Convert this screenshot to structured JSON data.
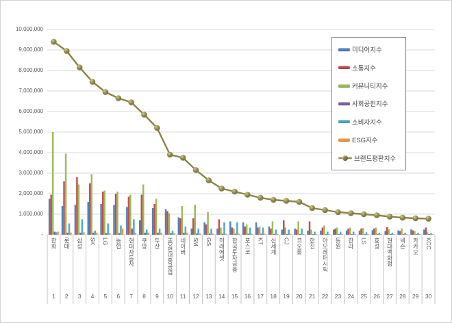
{
  "figure": {
    "background": "#ffffff",
    "border_color": "#d2d2d2"
  },
  "chart_data": {
    "type": "bar+line",
    "title": "",
    "grid": "horizontal-only",
    "legend_position": "upper-right-inside",
    "axis_text_color": "#595959",
    "gridline_color": "#d9d9d9",
    "separator_color": "#c3c3c3",
    "ylim": [
      0,
      10000000
    ],
    "y_tick_step": 1000000,
    "y_tick_labels": [
      "-",
      "1,000,000",
      "2,000,000",
      "3,000,000",
      "4,000,000",
      "5,000,000",
      "6,000,000",
      "7,000,000",
      "8,000,000",
      "9,000,000",
      "10,000,000"
    ],
    "categories": [
      "한화",
      "롯데",
      "삼성",
      "SK",
      "LG",
      "농협",
      "현대자동차",
      "쿠팡",
      "두산",
      "HD현대중공업",
      "네이버",
      "SM",
      "GS",
      "미래에셋",
      "한국투자금융",
      "포스코",
      "KT",
      "신세계",
      "CJ",
      "코오롱",
      "한진",
      "아모레퍼시픽",
      "동원",
      "한라",
      "LS",
      "효성",
      "현대백화점",
      "넥슨",
      "카카오",
      "KCC"
    ],
    "category_ranks": [
      "1",
      "2",
      "3",
      "4",
      "5",
      "6",
      "7",
      "8",
      "9",
      "10",
      "11",
      "12",
      "13",
      "14",
      "15",
      "16",
      "17",
      "18",
      "19",
      "20",
      "21",
      "22",
      "23",
      "24",
      "25",
      "26",
      "27",
      "28",
      "29",
      "30"
    ],
    "series": [
      {
        "name": "미디어지수",
        "type": "bar",
        "color": "#4F81BD",
        "values": [
          1750000,
          1400000,
          1450000,
          1600000,
          1500000,
          1450000,
          1350000,
          700000,
          1300000,
          1250000,
          850000,
          300000,
          600000,
          300000,
          650000,
          600000,
          600000,
          400000,
          250000,
          300000,
          200000,
          200000,
          250000,
          200000,
          200000,
          220000,
          180000,
          210000,
          260000,
          250000
        ]
      },
      {
        "name": "소통지수",
        "type": "bar",
        "color": "#C0504D",
        "values": [
          1950000,
          2600000,
          2800000,
          2500000,
          2100000,
          2000000,
          1850000,
          1950000,
          1500000,
          1150000,
          800000,
          800000,
          500000,
          750000,
          350000,
          400000,
          350000,
          300000,
          700000,
          250000,
          650000,
          350000,
          300000,
          300000,
          300000,
          300000,
          370000,
          180000,
          210000,
          350000
        ]
      },
      {
        "name": "커뮤니티지수",
        "type": "bar",
        "color": "#9BBB59",
        "values": [
          5000000,
          3950000,
          2450000,
          2950000,
          2150000,
          2100000,
          1950000,
          2450000,
          1750000,
          1050000,
          1400000,
          1450000,
          1100000,
          350000,
          300000,
          500000,
          400000,
          650000,
          350000,
          650000,
          250000,
          450000,
          350000,
          350000,
          330000,
          350000,
          260000,
          310000,
          180000,
          120000
        ]
      },
      {
        "name": "사회공헌지수",
        "type": "bar",
        "color": "#8064A2",
        "values": [
          150000,
          100000,
          100000,
          100000,
          80000,
          80000,
          300000,
          100000,
          100000,
          80000,
          100000,
          60000,
          50000,
          50000,
          50000,
          50000,
          50000,
          40000,
          40000,
          40000,
          30000,
          30000,
          30000,
          30000,
          30000,
          30000,
          30000,
          30000,
          30000,
          30000
        ]
      },
      {
        "name": "소비자지수",
        "type": "bar",
        "color": "#4BACC6",
        "values": [
          120000,
          550000,
          750000,
          200000,
          550000,
          450000,
          750000,
          250000,
          300000,
          200000,
          400000,
          300000,
          300000,
          600000,
          600000,
          350000,
          350000,
          250000,
          250000,
          300000,
          150000,
          150000,
          150000,
          150000,
          120000,
          100000,
          100000,
          100000,
          100000,
          80000
        ]
      },
      {
        "name": "ESG지수",
        "type": "bar",
        "color": "#F79646",
        "values": [
          150000,
          100000,
          120000,
          100000,
          80000,
          300000,
          100000,
          100000,
          100000,
          80000,
          100000,
          60000,
          50000,
          50000,
          50000,
          50000,
          50000,
          40000,
          40000,
          40000,
          30000,
          30000,
          30000,
          30000,
          30000,
          30000,
          30000,
          30000,
          30000,
          30000
        ]
      },
      {
        "name": "브랜드평판지수",
        "type": "line",
        "color": "#8A8347",
        "marker_fill_light": "#CDC78D",
        "marker_fill_dark": "#7B7440",
        "values": [
          9400000,
          8950000,
          8150000,
          7450000,
          6950000,
          6650000,
          6450000,
          5850000,
          5200000,
          3900000,
          3750000,
          3150000,
          2650000,
          2250000,
          2100000,
          1950000,
          1800000,
          1700000,
          1650000,
          1600000,
          1300000,
          1200000,
          1100000,
          1050000,
          1000000,
          950000,
          880000,
          830000,
          800000,
          780000
        ]
      }
    ]
  }
}
